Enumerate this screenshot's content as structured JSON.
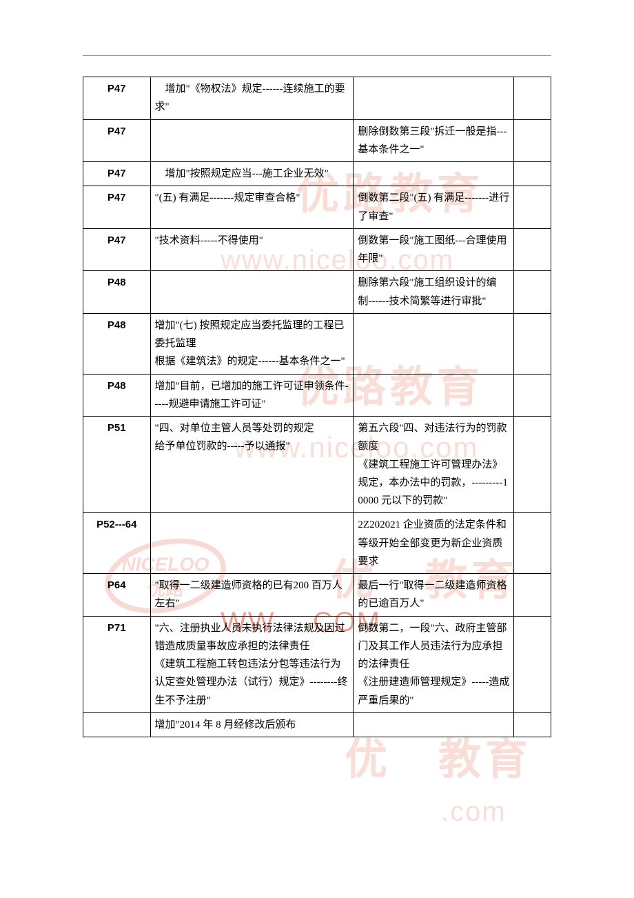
{
  "watermarks": {
    "brand_cn": "优路教育",
    "url": "www.niceloo.com",
    "logo_top": "NICELOO",
    "logo_bottom": "优路",
    "dot_com": ".com",
    "dot_com_caps": ".COM",
    "colors": {
      "wm": "#ed8a76"
    }
  },
  "rows": [
    {
      "page": "P47",
      "add": "　增加\"《物权法》规定------连续施工的要求\"",
      "del": "",
      "note": ""
    },
    {
      "page": "P47",
      "add": "",
      "del": "删除倒数第三段\"拆迁一般是指---基本条件之一\"",
      "note": ""
    },
    {
      "page": "P47",
      "add": "　增加\"按照规定应当---施工企业无效\"",
      "del": "",
      "note": ""
    },
    {
      "page": "P47",
      "add": "\"(五) 有满足-------规定审查合格\"",
      "del": "倒数第二段\"(五) 有满足-------进行了审查\"",
      "note": ""
    },
    {
      "page": "P47",
      "add": "\"技术资料-----不得使用\"",
      "del": "倒数第一段\"施工图纸---合理使用年限\"",
      "note": ""
    },
    {
      "page": "P48",
      "add": "",
      "del": "删除第六段\"施工组织设计的编制------技术简繁等进行审批\"",
      "note": ""
    },
    {
      "page": "P48",
      "add": "增加\"(七) 按照规定应当委托监理的工程已委托监理\n根据《建筑法》的规定------基本条件之一\"",
      "del": "",
      "note": ""
    },
    {
      "page": "P48",
      "add": "增加\"目前，已增加的施工许可证申领条件-----规避申请施工许可证\"",
      "del": "",
      "note": ""
    },
    {
      "page": "P51",
      "add": "\"四、对单位主管人员等处罚的规定\n给予单位罚款的-----予以通报\"",
      "del": "第五六段\"四、对违法行为的罚款额度\n《建筑工程施工许可管理办法》规定，本办法中的罚款，---------10000 元以下的罚款\"",
      "note": ""
    },
    {
      "page": "P52---64",
      "add": "",
      "del": "2Z202021 企业资质的法定条件和等级开始全部变更为新企业资质要求\n",
      "note": ""
    },
    {
      "page": "P64",
      "add": "\"取得一二级建造师资格的已有200 百万人左右\"",
      "del": "最后一行\"取得一二级建造师资格的已逾百万人\"",
      "note": ""
    },
    {
      "page": "P71",
      "add": "\"六、注册执业人员未执行法律法规及因过错造成质量事故应承担的法律责任\n《建筑工程施工转包违法分包等违法行为认定查处管理办法（试行）规定》--------终生不予注册\"",
      "del": "倒数第二，一段\"六、政府主管部门及其工作人员违法行为应承担的法律责任\n《注册建造师管理规定》-----造成严重后果的\"",
      "note": ""
    },
    {
      "page": "",
      "add": "增加\"2014 年 8 月经修改后颁布",
      "del": "",
      "note": ""
    }
  ]
}
